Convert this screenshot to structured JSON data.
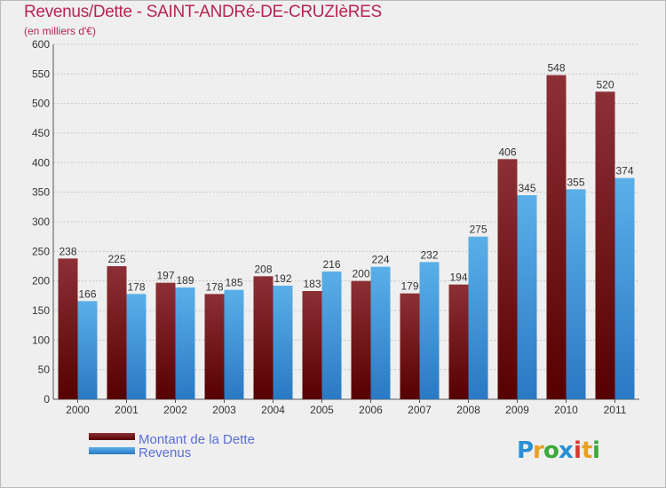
{
  "chart_data": {
    "type": "bar",
    "title": "Revenus/Dette - SAINT-ANDRé-DE-CRUZIèRES",
    "subtitle": "(en milliers d'€)",
    "xlabel": "",
    "ylabel": "",
    "ylim": [
      0,
      600
    ],
    "yticks": [
      0,
      50,
      100,
      150,
      200,
      250,
      300,
      350,
      400,
      450,
      500,
      550,
      600
    ],
    "grid": true,
    "legend_position": "bottom-left",
    "categories": [
      "2000",
      "2001",
      "2002",
      "2003",
      "2004",
      "2005",
      "2006",
      "2007",
      "2008",
      "2009",
      "2010",
      "2011"
    ],
    "series": [
      {
        "name": "Montant de la Dette",
        "color": "#7a1a1f",
        "values": [
          238,
          225,
          197,
          178,
          208,
          183,
          200,
          179,
          194,
          406,
          548,
          520
        ]
      },
      {
        "name": "Revenus",
        "color": "#4a9fe0",
        "values": [
          166,
          178,
          189,
          185,
          192,
          216,
          224,
          232,
          275,
          345,
          355,
          374
        ]
      }
    ]
  },
  "watermark": "Proxiti"
}
